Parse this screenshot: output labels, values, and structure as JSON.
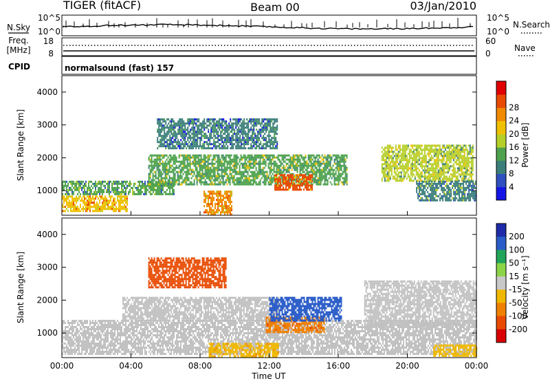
{
  "header": {
    "radar": "TIGER (fitACF)",
    "beam": "Beam 00",
    "date": "03/Jan/2010"
  },
  "noise_panel": {
    "left_label": "N.Sky",
    "right_label": "N.Search",
    "left_ticks": [
      "10^5",
      "10^0"
    ],
    "right_ticks": [
      "10^5",
      "10^0"
    ]
  },
  "freq_panel": {
    "left_label_1": "Freq.",
    "left_label_2": "[MHz]",
    "right_label": "Nave",
    "left_ticks": [
      "18",
      "8"
    ],
    "right_ticks": [
      "60",
      "0"
    ]
  },
  "cpid": {
    "label": "CPID",
    "value": "normalsound (fast) 157"
  },
  "chart_data": [
    {
      "type": "heatmap",
      "parameter": "power",
      "ylabel": "Slant Range [km]",
      "y_ticks": [
        1000,
        2000,
        3000,
        4000
      ],
      "ylim": [
        250,
        4500
      ],
      "x_ticks": [
        "00:00",
        "04:00",
        "08:00",
        "12:00",
        "16:00",
        "20:00",
        "00:00"
      ],
      "xlim_hours": [
        0,
        24
      ],
      "colorbar_label": "Power [dB]",
      "colorbar_ticks": [
        4,
        8,
        12,
        16,
        20,
        24,
        28
      ],
      "colorbar_colors": [
        "#1414e6",
        "#2f4fbf",
        "#3a7e7a",
        "#4ea24e",
        "#b6cf28",
        "#f0c000",
        "#f08a00",
        "#e84b00",
        "#e00000"
      ],
      "echo_regions": [
        {
          "band": "near-range",
          "t_start": 0.0,
          "t_end": 3.8,
          "r_min": 350,
          "r_max": 850,
          "level": 22
        },
        {
          "band": "near-range",
          "t_start": 8.2,
          "t_end": 9.8,
          "r_min": 300,
          "r_max": 1000,
          "level": 24
        },
        {
          "band": "mid-range",
          "t_start": 0.0,
          "t_end": 6.5,
          "r_min": 900,
          "r_max": 1300,
          "level": 12
        },
        {
          "band": "main-band",
          "t_start": 5.0,
          "t_end": 16.5,
          "r_min": 1200,
          "r_max": 2100,
          "level": 14
        },
        {
          "band": "enhancement",
          "t_start": 12.3,
          "t_end": 14.5,
          "r_min": 1000,
          "r_max": 1500,
          "level": 28
        },
        {
          "band": "upper-patches",
          "t_start": 5.5,
          "t_end": 12.5,
          "r_min": 2300,
          "r_max": 3200,
          "level": 8
        },
        {
          "band": "evening-band",
          "t_start": 18.5,
          "t_end": 23.8,
          "r_min": 1300,
          "r_max": 2400,
          "level": 16
        },
        {
          "band": "evening-lower",
          "t_start": 20.5,
          "t_end": 24.0,
          "r_min": 700,
          "r_max": 1300,
          "level": 10
        }
      ]
    },
    {
      "type": "heatmap",
      "parameter": "velocity",
      "ylabel": "Slant Range [km]",
      "y_ticks": [
        1000,
        2000,
        3000,
        4000
      ],
      "ylim": [
        250,
        4500
      ],
      "x_ticks": [
        "00:00",
        "04:00",
        "08:00",
        "12:00",
        "16:00",
        "20:00",
        "00:00"
      ],
      "xlim_hours": [
        0,
        24
      ],
      "xlabel": "Time UT",
      "colorbar_label": "Velocity [m s⁻¹]",
      "colorbar_ticks": [
        200,
        100,
        50,
        15,
        -15,
        -50,
        -100,
        -200
      ],
      "colorbar_colors": [
        "#1e2ba8",
        "#2a5cc8",
        "#22a55a",
        "#8cd448",
        "#c8c8c8",
        "#f0b800",
        "#f08000",
        "#e84a00",
        "#d80000"
      ],
      "ground_scatter_color": "#c0c0c0",
      "echo_regions": [
        {
          "band": "near-range",
          "t_start": 0.0,
          "t_end": 24.0,
          "r_min": 350,
          "r_max": 1400,
          "level": 0,
          "kind": "ground-scatter"
        },
        {
          "band": "main-band",
          "t_start": 3.5,
          "t_end": 12.5,
          "r_min": 1400,
          "r_max": 2100,
          "level": 0,
          "kind": "ground-scatter"
        },
        {
          "band": "orange-near",
          "t_start": 8.5,
          "t_end": 12.5,
          "r_min": 300,
          "r_max": 700,
          "level": -50
        },
        {
          "band": "flow-negative",
          "t_start": 11.8,
          "t_end": 15.2,
          "r_min": 1000,
          "r_max": 1500,
          "level": -100
        },
        {
          "band": "flow-positive",
          "t_start": 12.0,
          "t_end": 16.2,
          "r_min": 1400,
          "r_max": 2100,
          "level": 150
        },
        {
          "band": "upper-patches",
          "t_start": 5.0,
          "t_end": 9.5,
          "r_min": 2400,
          "r_max": 3300,
          "level": -150
        },
        {
          "band": "evening-gs",
          "t_start": 17.5,
          "t_end": 24.0,
          "r_min": 1200,
          "r_max": 2600,
          "level": 0,
          "kind": "ground-scatter"
        },
        {
          "band": "evening-orange",
          "t_start": 21.5,
          "t_end": 24.0,
          "r_min": 300,
          "r_max": 650,
          "level": -40
        }
      ]
    }
  ]
}
